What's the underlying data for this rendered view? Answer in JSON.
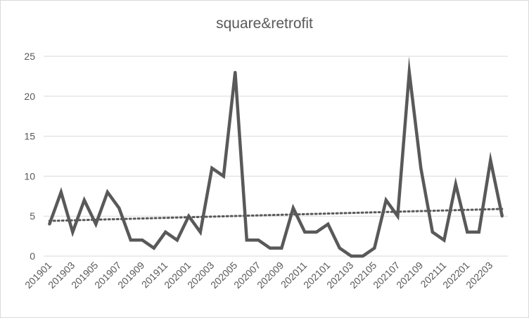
{
  "chart_data": {
    "type": "line",
    "title": "square&retrofit",
    "xlabel": "",
    "ylabel": "",
    "ylim": [
      0,
      25
    ],
    "yticks": [
      0,
      5,
      10,
      15,
      20,
      25
    ],
    "grid": true,
    "legend": "none",
    "trendline": {
      "type": "linear",
      "style": "dotted",
      "start": 4.4,
      "end": 5.9
    },
    "categories": [
      "201901",
      "201902",
      "201903",
      "201904",
      "201905",
      "201906",
      "201907",
      "201908",
      "201909",
      "201910",
      "201911",
      "201912",
      "202001",
      "202002",
      "202003",
      "202004",
      "202005",
      "202006",
      "202007",
      "202008",
      "202009",
      "202010",
      "202011",
      "202012",
      "202101",
      "202102",
      "202103",
      "202104",
      "202105",
      "202106",
      "202107",
      "202108",
      "202109",
      "202110",
      "202111",
      "202112",
      "202201",
      "202202",
      "202203",
      "202204"
    ],
    "tick_labels": [
      "201901",
      "201903",
      "201905",
      "201907",
      "201909",
      "201911",
      "202001",
      "202003",
      "202005",
      "202007",
      "202009",
      "202011",
      "202101",
      "202103",
      "202105",
      "202107",
      "202109",
      "202111",
      "202201",
      "202203"
    ],
    "series": [
      {
        "values": [
          4,
          8,
          3,
          7,
          4,
          8,
          6,
          2,
          2,
          1,
          3,
          2,
          5,
          3,
          11,
          10,
          23,
          2,
          2,
          1,
          1,
          6,
          3,
          3,
          4,
          1,
          0,
          0,
          1,
          7,
          5,
          23,
          11,
          3,
          2,
          9,
          3,
          3,
          12,
          5
        ],
        "color": "#595959"
      }
    ],
    "colors": {
      "grid": "#d9d9d9",
      "line": "#595959",
      "trend": "#595959",
      "text": "#595959"
    }
  }
}
